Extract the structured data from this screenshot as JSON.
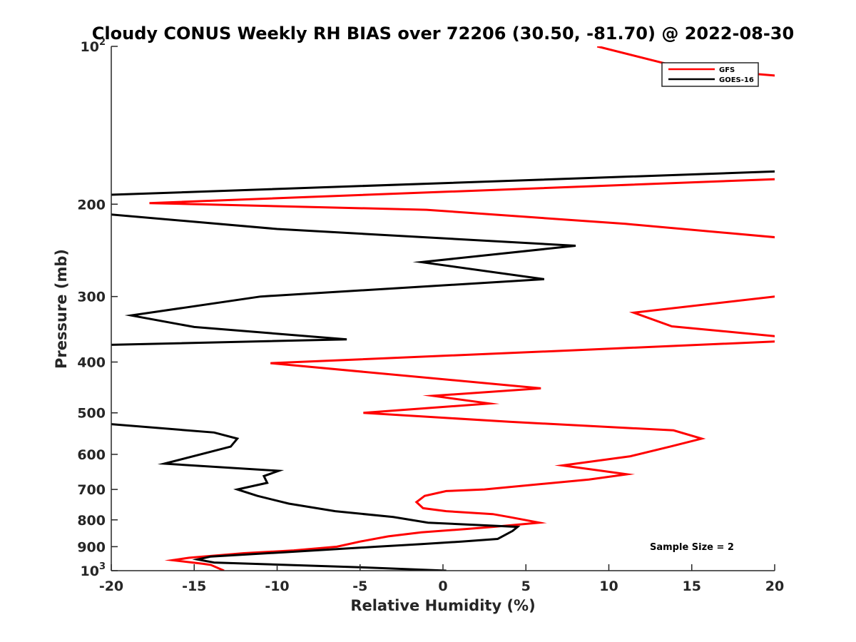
{
  "chart_data": {
    "type": "line",
    "title": "Cloudy CONUS Weekly RH BIAS over 72206 (30.50, -81.70) @ 2022-08-30",
    "xlabel": "Relative Humidity (%)",
    "ylabel": "Pressure (mb)",
    "xlim": [
      -20,
      20
    ],
    "ylim": [
      100,
      1000
    ],
    "yscale": "log",
    "y_reversed": true,
    "grid": false,
    "legend_position": "top-right",
    "x_ticks": [
      -20,
      -15,
      -10,
      -5,
      0,
      5,
      10,
      15,
      20
    ],
    "x_tick_labels": [
      "-20",
      "-15",
      "-10",
      "-5",
      "0",
      "5",
      "10",
      "15",
      "20"
    ],
    "y_ticks": [
      100,
      200,
      300,
      400,
      500,
      600,
      700,
      800,
      900,
      1000
    ],
    "y_tick_labels": [
      {
        "base": "10",
        "exp": "2"
      },
      {
        "base": "200"
      },
      {
        "base": "300"
      },
      {
        "base": "400"
      },
      {
        "base": "500"
      },
      {
        "base": "600"
      },
      {
        "base": "700"
      },
      {
        "base": "800"
      },
      {
        "base": "900"
      },
      {
        "base": "10",
        "exp": "3"
      }
    ],
    "series": [
      {
        "name": "GFS",
        "color": "#ff0000",
        "points": [
          [
            9.3,
            100
          ],
          [
            14.5,
            110
          ],
          [
            20.5,
            114
          ],
          [
            20.5,
            179
          ],
          [
            -17.7,
            199
          ],
          [
            -1.0,
            205
          ],
          [
            11.0,
            218
          ],
          [
            20.5,
            232
          ],
          [
            20.5,
            300
          ],
          [
            20.0,
            300
          ],
          [
            11.5,
            322
          ],
          [
            13.8,
            342
          ],
          [
            20.0,
            357
          ],
          [
            20.5,
            358
          ],
          [
            20.5,
            365
          ],
          [
            7.8,
            380
          ],
          [
            -10.4,
            402
          ],
          [
            5.9,
            449
          ],
          [
            -0.6,
            464
          ],
          [
            2.8,
            480
          ],
          [
            -4.8,
            500
          ],
          [
            4.0,
            520
          ],
          [
            13.9,
            540
          ],
          [
            15.6,
            560
          ],
          [
            13.7,
            580
          ],
          [
            11.3,
            605
          ],
          [
            7.2,
            630
          ],
          [
            11.1,
            655
          ],
          [
            8.8,
            670
          ],
          [
            2.5,
            700
          ],
          [
            0.2,
            705
          ],
          [
            -1.1,
            720
          ],
          [
            -1.6,
            740
          ],
          [
            -1.2,
            760
          ],
          [
            0.2,
            770
          ],
          [
            3.0,
            780
          ],
          [
            4.0,
            790
          ],
          [
            5.8,
            810
          ],
          [
            3.0,
            825
          ],
          [
            1.6,
            832
          ],
          [
            -1.3,
            845
          ],
          [
            -3.3,
            860
          ],
          [
            -5.0,
            880
          ],
          [
            -6.4,
            900
          ],
          [
            -9.0,
            915
          ],
          [
            -12.0,
            926
          ],
          [
            -15.3,
            945
          ],
          [
            -16.3,
            955
          ],
          [
            -14.5,
            970
          ],
          [
            -14.0,
            975
          ],
          [
            -13.2,
            1000
          ]
        ]
      },
      {
        "name": "GOES-16",
        "color": "#000000",
        "points": [
          [
            20.5,
            173
          ],
          [
            -20.2,
            192
          ],
          [
            -20.2,
            209
          ],
          [
            -10.0,
            223
          ],
          [
            8.0,
            240
          ],
          [
            -1.3,
            258
          ],
          [
            6.1,
            278
          ],
          [
            -11.0,
            300
          ],
          [
            -18.8,
            326
          ],
          [
            -15.0,
            343
          ],
          [
            -5.8,
            362
          ],
          [
            -20.2,
            371
          ],
          [
            -20.2,
            525
          ],
          [
            -13.8,
            545
          ],
          [
            -12.4,
            560
          ],
          [
            -12.8,
            580
          ],
          [
            -16.8,
            625
          ],
          [
            -9.9,
            645
          ],
          [
            -10.8,
            660
          ],
          [
            -10.6,
            680
          ],
          [
            -12.4,
            700
          ],
          [
            -11.2,
            720
          ],
          [
            -9.3,
            745
          ],
          [
            -6.5,
            770
          ],
          [
            -3.0,
            790
          ],
          [
            -0.9,
            810
          ],
          [
            4.5,
            825
          ],
          [
            4.2,
            840
          ],
          [
            3.3,
            870
          ],
          [
            1.1,
            880
          ],
          [
            -1.3,
            890
          ],
          [
            -4.0,
            900
          ],
          [
            -9.5,
            922
          ],
          [
            -14.0,
            940
          ],
          [
            -14.8,
            952
          ],
          [
            -13.8,
            965
          ],
          [
            -5.0,
            985
          ],
          [
            0.2,
            1000
          ]
        ]
      }
    ],
    "annotations": [
      "Sample Size = 2"
    ]
  }
}
